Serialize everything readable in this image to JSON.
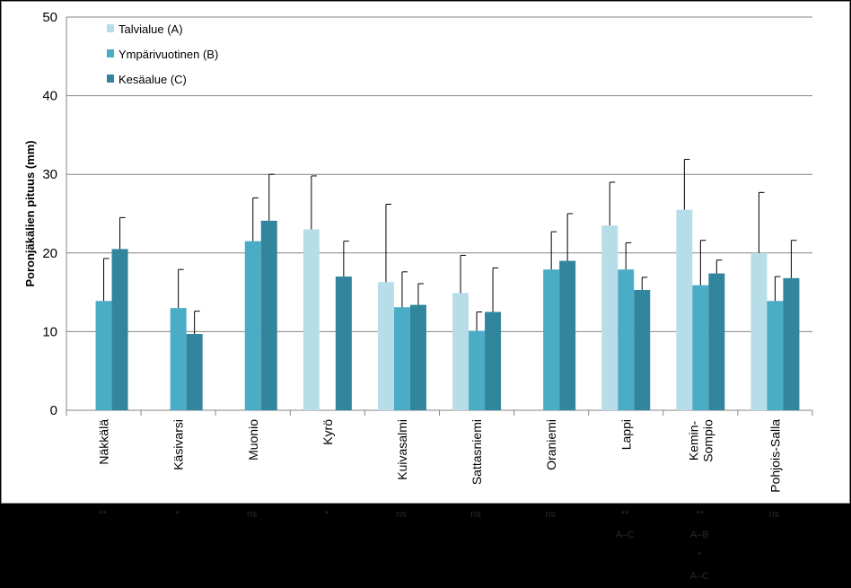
{
  "chart_data": {
    "type": "bar",
    "title": "",
    "xlabel": "",
    "ylabel": "Poronjäkälien pituus (mm)",
    "ylim": [
      0,
      50
    ],
    "yticks": [
      0,
      10,
      20,
      30,
      40,
      50
    ],
    "grid": true,
    "legend_position": "top-left",
    "categories": [
      "Näkkälä",
      "Käsivarsi",
      "Muonio",
      "Kyrö",
      "Kuivasalmi",
      "Sattasniemi",
      "Oraniemi",
      "Lappi",
      "Kemin-Sompio",
      "Pohjois-Salla"
    ],
    "series": [
      {
        "name": "Talvialue (A)",
        "color": "#b7dee8",
        "values": [
          null,
          null,
          null,
          23.0,
          16.3,
          14.9,
          null,
          23.5,
          25.5,
          20.0
        ],
        "errors": [
          null,
          null,
          null,
          6.8,
          9.9,
          4.8,
          null,
          5.5,
          6.4,
          7.7
        ]
      },
      {
        "name": "Ympärivuotinen (B)",
        "color": "#4bacc6",
        "values": [
          13.9,
          13.0,
          21.5,
          null,
          13.1,
          10.1,
          17.9,
          17.9,
          15.9,
          13.9
        ],
        "errors": [
          5.4,
          4.9,
          5.5,
          null,
          4.5,
          2.4,
          4.8,
          3.4,
          5.7,
          3.1
        ]
      },
      {
        "name": "Kesäalue (C)",
        "color": "#31859c",
        "values": [
          20.5,
          9.7,
          24.1,
          17.0,
          13.4,
          12.5,
          19.0,
          15.3,
          17.4,
          16.8
        ],
        "errors": [
          4.0,
          2.9,
          5.9,
          4.5,
          2.7,
          5.6,
          6.0,
          1.6,
          1.7,
          4.8
        ]
      }
    ],
    "significance": [
      [
        "**"
      ],
      [
        "*"
      ],
      [
        "ns"
      ],
      [
        "*"
      ],
      [
        "ns"
      ],
      [
        "ns"
      ],
      [
        "ns"
      ],
      [
        "**",
        "A–C"
      ],
      [
        "**",
        "A–B",
        "*",
        "A–C"
      ],
      [
        "ns"
      ]
    ]
  }
}
